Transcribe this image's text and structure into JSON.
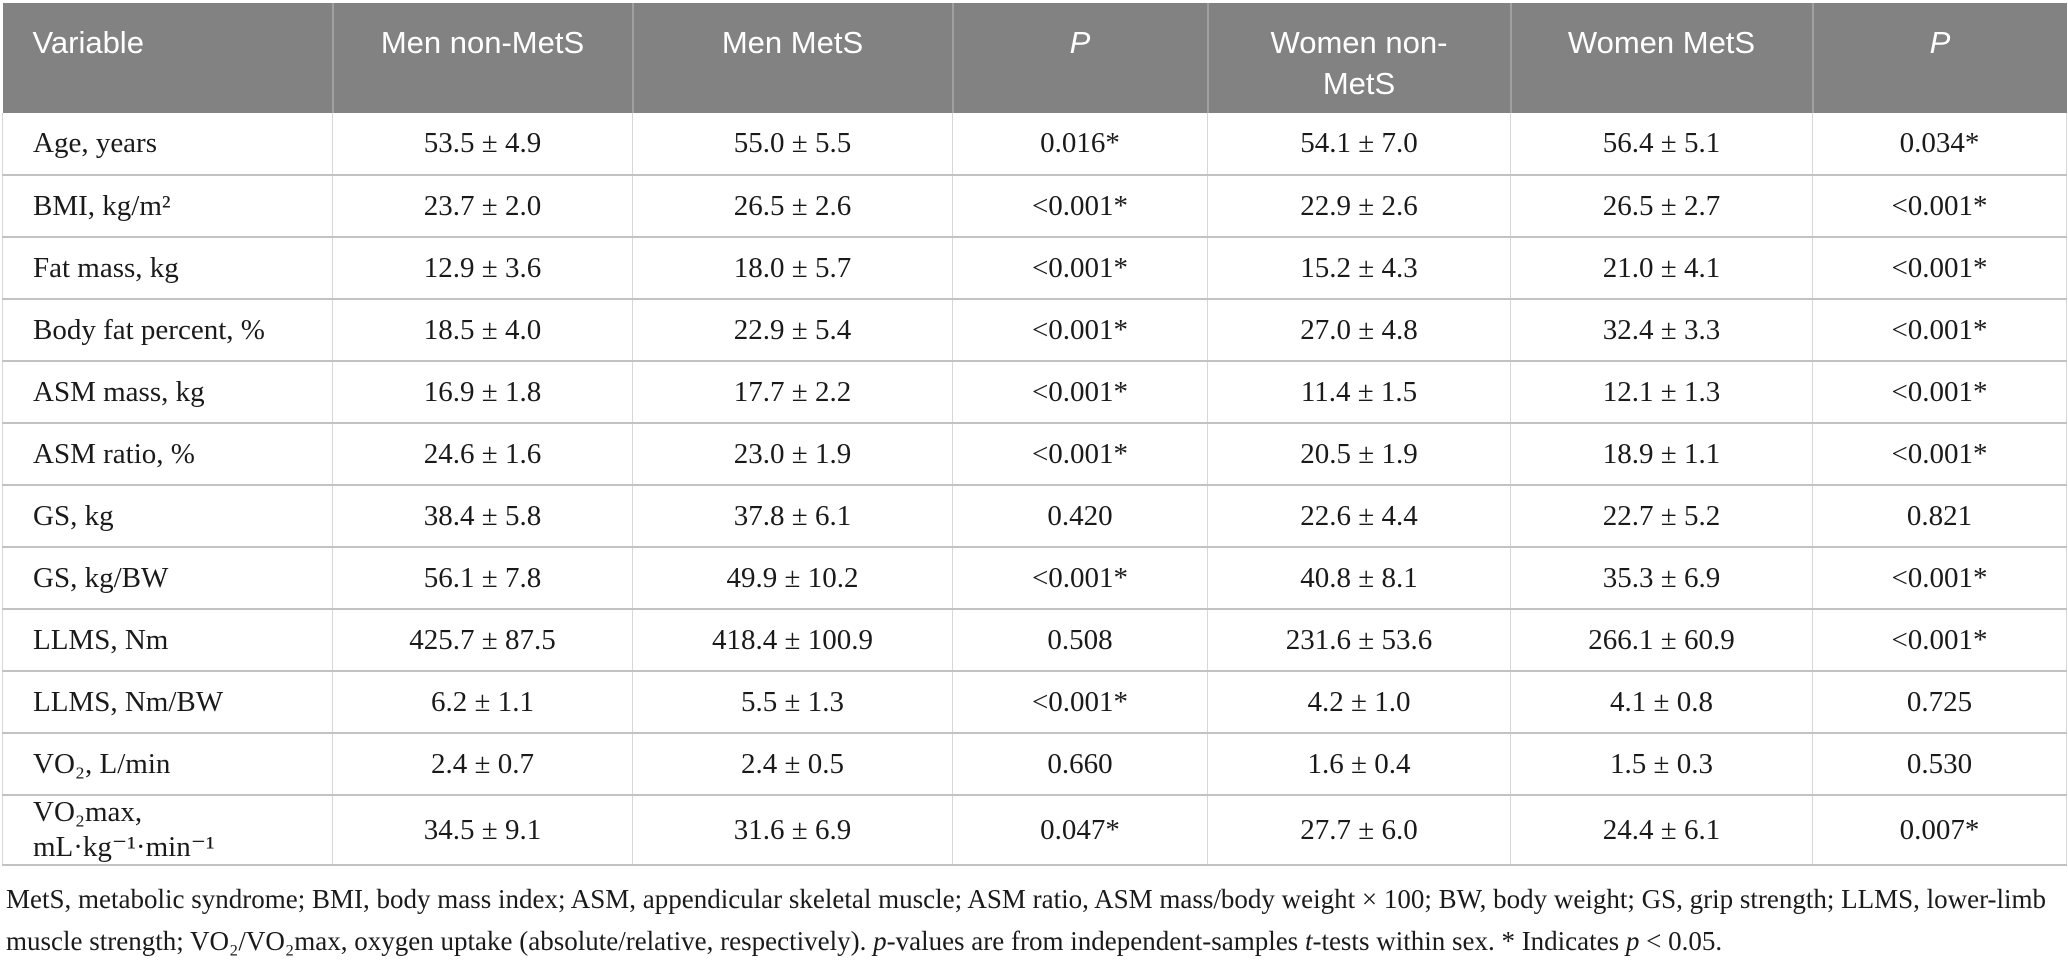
{
  "table": {
    "columns": [
      {
        "label": "Variable"
      },
      {
        "label": "Men non-MetS"
      },
      {
        "label": "Men MetS"
      },
      {
        "label": "P"
      },
      {
        "label": "Women non-\nMetS"
      },
      {
        "label": "Women MetS"
      },
      {
        "label": "P"
      }
    ],
    "rows": [
      {
        "cells": [
          "Age, years",
          "53.5 ± 4.9",
          "55.0 ± 5.5",
          "0.016*",
          "54.1 ± 7.0",
          "56.4 ± 5.1",
          "0.034*"
        ]
      },
      {
        "cells": [
          "BMI, kg/m²",
          "23.7 ± 2.0",
          "26.5 ± 2.6",
          "<0.001*",
          "22.9 ± 2.6",
          "26.5 ± 2.7",
          "<0.001*"
        ]
      },
      {
        "cells": [
          "Fat mass, kg",
          "12.9 ± 3.6",
          "18.0 ± 5.7",
          "<0.001*",
          "15.2 ± 4.3",
          "21.0 ± 4.1",
          "<0.001*"
        ]
      },
      {
        "cells": [
          "Body fat percent, %",
          "18.5 ± 4.0",
          "22.9 ± 5.4",
          "<0.001*",
          "27.0 ± 4.8",
          "32.4 ± 3.3",
          "<0.001*"
        ]
      },
      {
        "cells": [
          "ASM mass, kg",
          "16.9 ± 1.8",
          "17.7 ± 2.2",
          "<0.001*",
          "11.4 ± 1.5",
          "12.1 ± 1.3",
          "<0.001*"
        ]
      },
      {
        "cells": [
          "ASM ratio, %",
          "24.6 ± 1.6",
          "23.0 ± 1.9",
          "<0.001*",
          "20.5 ± 1.9",
          "18.9 ± 1.1",
          "<0.001*"
        ]
      },
      {
        "cells": [
          "GS, kg",
          "38.4 ± 5.8",
          "37.8 ± 6.1",
          "0.420",
          "22.6 ± 4.4",
          "22.7 ± 5.2",
          "0.821"
        ]
      },
      {
        "cells": [
          "GS, kg/BW",
          "56.1 ± 7.8",
          "49.9 ± 10.2",
          "<0.001*",
          "40.8 ± 8.1",
          "35.3 ± 6.9",
          "<0.001*"
        ]
      },
      {
        "cells": [
          "LLMS, Nm",
          "425.7 ± 87.5",
          "418.4 ± 100.9",
          "0.508",
          "231.6 ± 53.6",
          "266.1 ± 60.9",
          "<0.001*"
        ]
      },
      {
        "cells": [
          "LLMS, Nm/BW",
          "6.2 ± 1.1",
          "5.5 ± 1.3",
          "<0.001*",
          "4.2 ± 1.0",
          "4.1 ± 0.8",
          "0.725"
        ]
      },
      {
        "cells": [
          "VO₂, L/min",
          "2.4 ± 0.7",
          "2.4 ± 0.5",
          "0.660",
          "1.6 ± 0.4",
          "1.5 ± 0.3",
          "0.530"
        ]
      },
      {
        "cells": [
          "VO₂max, mL·kg⁻¹·min⁻¹",
          "34.5 ± 9.1",
          "31.6 ± 6.9",
          "0.047*",
          "27.7 ± 6.0",
          "24.4 ± 6.1",
          "0.007*"
        ]
      }
    ]
  },
  "footnote": {
    "segments": [
      {
        "text": "MetS, metabolic syndrome; BMI, body mass index; ASM, appendicular skeletal muscle; ASM ratio, ASM mass/body weight × 100; BW, body weight; GS, grip strength; LLMS, lower-limb muscle strength; VO₂/VO₂max, oxygen uptake (absolute/relative, respectively). "
      },
      {
        "text": "p",
        "italic": true
      },
      {
        "text": "-values are from independent-samples "
      },
      {
        "text": "t",
        "italic": true
      },
      {
        "text": "-tests within sex. * Indicates "
      },
      {
        "text": "p",
        "italic": true
      },
      {
        "text": " < 0.05."
      }
    ]
  }
}
